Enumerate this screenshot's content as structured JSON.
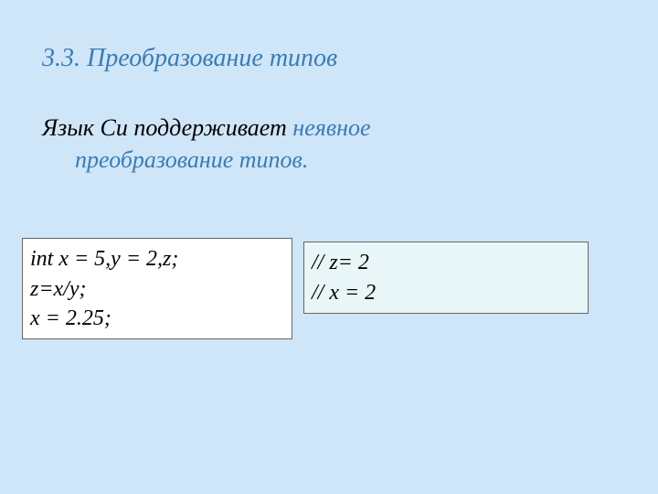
{
  "heading": "3.3.  Преобразование типов",
  "paragraph": {
    "line1_plain": "Язык Си  поддерживает ",
    "line1_accent": " неявное",
    "line2_accent": "преобразование типов."
  },
  "code_left": {
    "l1": "int x = 5,y = 2,z;",
    "l2": "z=x/y;",
    "l3": "x = 2.25;"
  },
  "code_right": {
    "l1": "// z= 2",
    "l2": "// x = 2"
  },
  "colors": {
    "background": "#cfe6f8",
    "heading": "#3a7cb5",
    "accent": "#3a7cb5",
    "plain": "#000000",
    "box_left_bg": "#ffffff",
    "box_right_bg": "#e8f6f8",
    "box_border": "#666666"
  },
  "typography": {
    "heading_fontsize": 28,
    "body_fontsize": 26,
    "code_fontsize": 24,
    "font_style": "italic",
    "font_family": "Georgia / Times-like serif"
  },
  "layout": {
    "slide_width": 720,
    "slide_height": 540,
    "box_left_width": 296,
    "box_right_width": 312,
    "box_gap": 28
  }
}
